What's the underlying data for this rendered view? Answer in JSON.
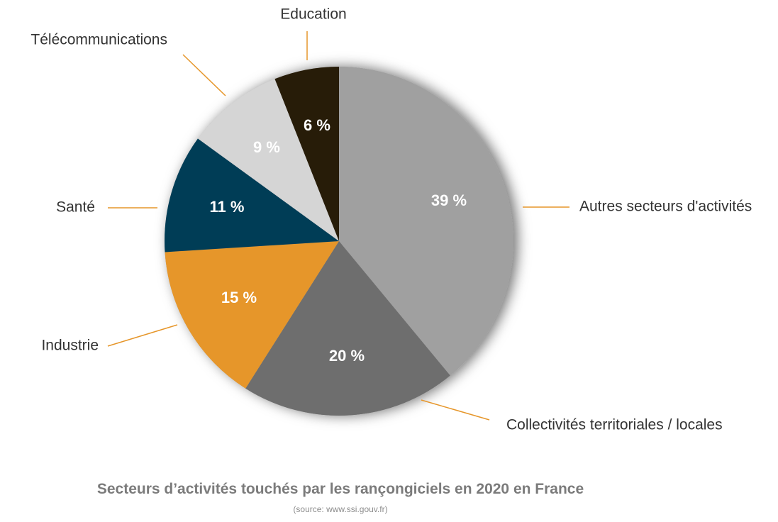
{
  "chart_data": {
    "type": "pie",
    "title": "Secteurs d’activités touchés par les rançongiciels en 2020 en France",
    "subtitle": "(source: www.ssi.gouv.fr)",
    "slices": [
      {
        "label": "Autres secteurs d'activités",
        "value": 39,
        "value_label": "39 %",
        "color": "#a0a0a0"
      },
      {
        "label": "Collectivités territoriales / locales",
        "value": 20,
        "value_label": "20 %",
        "color": "#6e6e6e"
      },
      {
        "label": "Industrie",
        "value": 15,
        "value_label": "15 %",
        "color": "#e6962a"
      },
      {
        "label": "Santé",
        "value": 11,
        "value_label": "11 %",
        "color": "#003d56"
      },
      {
        "label": "Télécommunications",
        "value": 9,
        "value_label": "9 %",
        "color": "#d5d5d5"
      },
      {
        "label": "Education",
        "value": 6,
        "value_label": "6 %",
        "color": "#271c08"
      }
    ],
    "leader_line_color": "#e6962a",
    "label_color": "#333333",
    "value_label_color": "#ffffff"
  }
}
